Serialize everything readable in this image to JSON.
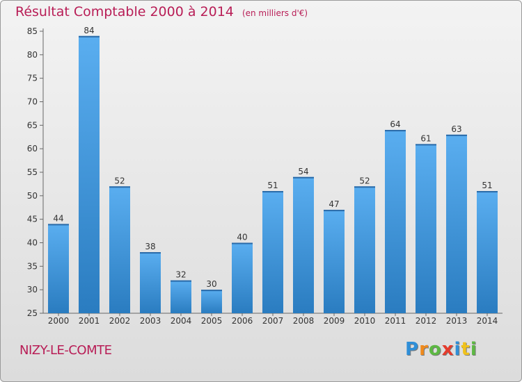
{
  "title": "Résultat Comptable 2000 à 2014",
  "subtitle": "(en milliers d'€)",
  "place": "NIZY-LE-COMTE",
  "logo": {
    "text": "Proxiti",
    "letters": [
      {
        "ch": "P",
        "color": "#2f8fd8"
      },
      {
        "ch": "r",
        "color": "#f08a1c"
      },
      {
        "ch": "o",
        "color": "#5db843"
      },
      {
        "ch": "x",
        "color": "#e53b2c"
      },
      {
        "ch": "i",
        "color": "#2f8fd8"
      },
      {
        "ch": "t",
        "color": "#f0c21c"
      },
      {
        "ch": "i",
        "color": "#5db843"
      }
    ]
  },
  "colors": {
    "title": "#b81d56",
    "bar_light": "#5aaef0",
    "bar_dark": "#2a7cc0"
  },
  "chart_data": {
    "type": "bar",
    "categories": [
      "2000",
      "2001",
      "2002",
      "2003",
      "2004",
      "2005",
      "2006",
      "2007",
      "2008",
      "2009",
      "2010",
      "2011",
      "2012",
      "2013",
      "2014"
    ],
    "values": [
      44,
      84,
      52,
      38,
      32,
      30,
      40,
      51,
      54,
      47,
      52,
      64,
      61,
      63,
      51
    ],
    "ylim": [
      25,
      85
    ],
    "yticks": [
      25,
      30,
      35,
      40,
      45,
      50,
      55,
      60,
      65,
      70,
      75,
      80,
      85
    ],
    "grid": false,
    "legend": "none"
  }
}
